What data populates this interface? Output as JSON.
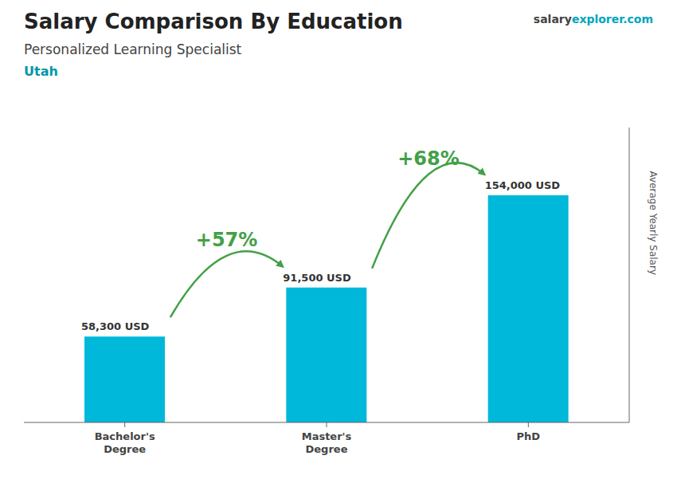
{
  "chart_data": {
    "type": "bar",
    "title": "Salary Comparison By Education",
    "subtitle": "Personalized Learning Specialist",
    "location": "Utah",
    "watermark": [
      "salary",
      "explorer",
      ".com"
    ],
    "categories": [
      "Bachelor's\nDegree",
      "Master's\nDegree",
      "PhD"
    ],
    "values": [
      58300,
      91500,
      154000
    ],
    "value_labels": [
      "58,300 USD",
      "91,500 USD",
      "154,000 USD"
    ],
    "data_labels": true,
    "annotations": [
      "+57%",
      "+68%"
    ],
    "ylabel": "Average Yearly Salary",
    "ylim": [
      0,
      200000
    ],
    "tick_labels": "x",
    "grid": false,
    "color": "#00b8d9"
  }
}
